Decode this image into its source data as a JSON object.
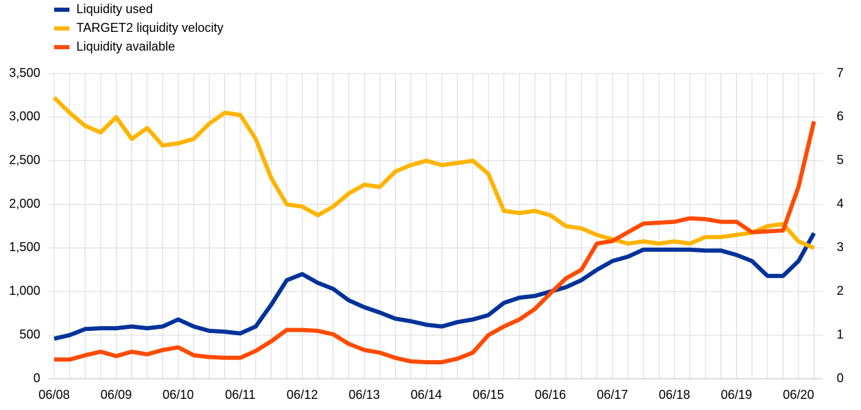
{
  "chart_data": {
    "type": "line",
    "categories": [
      "06/08",
      null,
      null,
      null,
      "06/09",
      null,
      null,
      null,
      "06/10",
      null,
      null,
      null,
      "06/11",
      null,
      null,
      null,
      "06/12",
      null,
      null,
      null,
      "06/13",
      null,
      null,
      null,
      "06/14",
      null,
      null,
      null,
      "06/15",
      null,
      null,
      null,
      "06/16",
      null,
      null,
      null,
      "06/17",
      null,
      null,
      null,
      "06/18",
      null,
      null,
      null,
      "06/19",
      null,
      null,
      null,
      "06/20",
      null
    ],
    "series": [
      {
        "name": "Liquidity used",
        "color": "#003299",
        "values": [
          460,
          500,
          570,
          580,
          580,
          600,
          580,
          600,
          680,
          600,
          550,
          540,
          520,
          600,
          850,
          1130,
          1200,
          1100,
          1030,
          900,
          820,
          760,
          690,
          660,
          620,
          600,
          650,
          680,
          730,
          870,
          930,
          950,
          1000,
          1050,
          1130,
          1250,
          1350,
          1400,
          1480,
          1480,
          1480,
          1480,
          1470,
          1470,
          1420,
          1350,
          1180,
          1180,
          1350,
          1670
        ]
      },
      {
        "name": "TARGET2 liquidity velocity",
        "color": "#ffb400",
        "axis": "y2",
        "values": [
          6.45,
          6.1,
          5.8,
          5.65,
          6.0,
          5.5,
          5.75,
          5.35,
          5.4,
          5.5,
          5.85,
          6.1,
          6.05,
          5.5,
          4.6,
          4.0,
          3.95,
          3.75,
          3.95,
          4.25,
          4.45,
          4.4,
          4.75,
          4.9,
          5.0,
          4.9,
          4.95,
          5.0,
          4.7,
          3.85,
          3.8,
          3.85,
          3.75,
          3.5,
          3.45,
          3.3,
          3.2,
          3.1,
          3.15,
          3.1,
          3.15,
          3.1,
          3.25,
          3.25,
          3.3,
          3.35,
          3.5,
          3.55,
          3.15,
          3.0
        ]
      },
      {
        "name": "Liquidity available",
        "color": "#ff4b00",
        "values": [
          220,
          220,
          270,
          310,
          260,
          310,
          280,
          330,
          360,
          270,
          250,
          240,
          240,
          320,
          430,
          560,
          560,
          550,
          510,
          400,
          330,
          300,
          240,
          200,
          190,
          190,
          230,
          300,
          500,
          600,
          680,
          800,
          980,
          1150,
          1250,
          1550,
          1580,
          1680,
          1780,
          1790,
          1800,
          1840,
          1830,
          1800,
          1800,
          1680,
          1690,
          1700,
          2200,
          2950
        ]
      }
    ],
    "ylim": [
      0,
      3500
    ],
    "yticks": [
      0,
      {
        "value": 500,
        "label": "500"
      },
      {
        "value": 1000,
        "label": "1,000"
      },
      {
        "value": 1500,
        "label": "1,500"
      },
      {
        "value": 2000,
        "label": "2,000"
      },
      {
        "value": 2500,
        "label": "2,500"
      },
      {
        "value": 3000,
        "label": "3,000"
      },
      {
        "value": 3500,
        "label": "3,500"
      }
    ],
    "y2lim": [
      0,
      7
    ],
    "y2ticks": [
      0,
      1,
      2,
      3,
      4,
      5,
      6,
      7
    ],
    "grid": true,
    "legend": "upper left"
  }
}
